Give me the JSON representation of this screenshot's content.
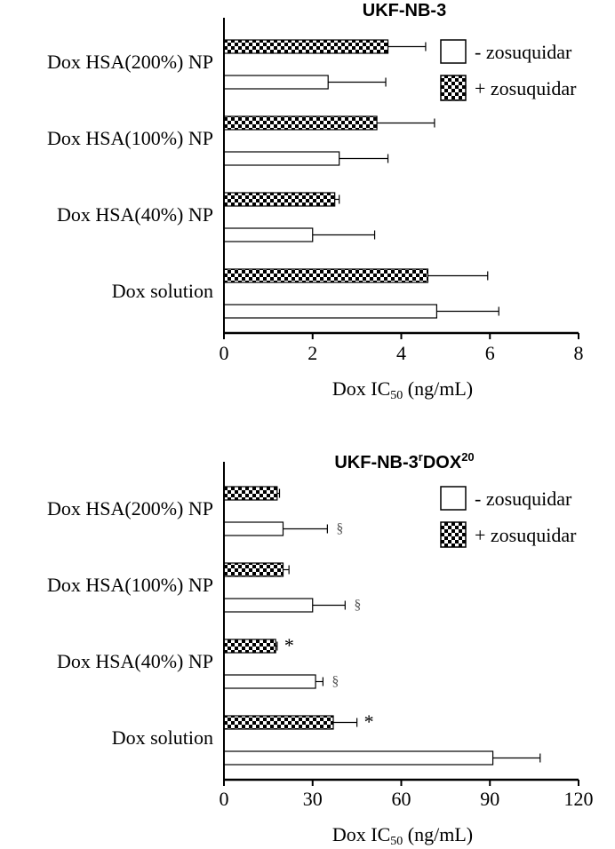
{
  "chart_data": [
    {
      "type": "bar",
      "orientation": "horizontal",
      "title": "UKF-NB-3",
      "title_parts": {
        "base": "UKF-NB-3",
        "sup1": "",
        "mid": "",
        "sup2": ""
      },
      "xlabel_main": "Dox IC",
      "xlabel_sub": "50",
      "xlabel_unit": " (ng/mL)",
      "xlim": [
        0,
        8
      ],
      "xticks": [
        "0",
        "2",
        "4",
        "6",
        "8"
      ],
      "categories": [
        "Dox HSA(200%) NP",
        "Dox HSA(100%) NP",
        "Dox HSA(40%) NP",
        "Dox solution"
      ],
      "series": [
        {
          "name": "+ zosuquidar",
          "pattern": "checker",
          "values": [
            3.7,
            3.45,
            2.5,
            4.6
          ],
          "errors": [
            0.85,
            1.3,
            0.1,
            1.35
          ],
          "marks": [
            "",
            "",
            "",
            ""
          ]
        },
        {
          "name": "- zosuquidar",
          "pattern": "open",
          "values": [
            2.35,
            2.6,
            2.0,
            4.8
          ],
          "errors": [
            1.3,
            1.1,
            1.4,
            1.4
          ],
          "marks": [
            "",
            "",
            "",
            ""
          ]
        }
      ],
      "legend": [
        "- zosuquidar",
        "+ zosuquidar"
      ],
      "legend_position": "top-right",
      "grid": false
    },
    {
      "type": "bar",
      "orientation": "horizontal",
      "title": "UKF-NB-3rDOX20",
      "title_parts": {
        "base": "UKF-NB-3",
        "sup1": "r",
        "mid": "DOX",
        "sup2": "20"
      },
      "xlabel_main": "Dox IC",
      "xlabel_sub": "50",
      "xlabel_unit": " (ng/mL)",
      "xlim": [
        0,
        120
      ],
      "xticks": [
        "0",
        "30",
        "60",
        "90",
        "120"
      ],
      "categories": [
        "Dox HSA(200%) NP",
        "Dox HSA(100%) NP",
        "Dox HSA(40%) NP",
        "Dox solution"
      ],
      "series": [
        {
          "name": "+ zosuquidar",
          "pattern": "checker",
          "values": [
            18,
            20,
            17.5,
            37
          ],
          "errors": [
            0.8,
            2,
            0.5,
            8
          ],
          "marks": [
            "",
            "",
            "*",
            "*"
          ]
        },
        {
          "name": "- zosuquidar",
          "pattern": "open",
          "values": [
            20,
            30,
            31,
            91
          ],
          "errors": [
            15,
            11,
            2.5,
            16
          ],
          "marks": [
            "§",
            "§",
            "§",
            ""
          ]
        }
      ],
      "legend": [
        "- zosuquidar",
        "+ zosuquidar"
      ],
      "legend_position": "top-right",
      "grid": false
    }
  ]
}
